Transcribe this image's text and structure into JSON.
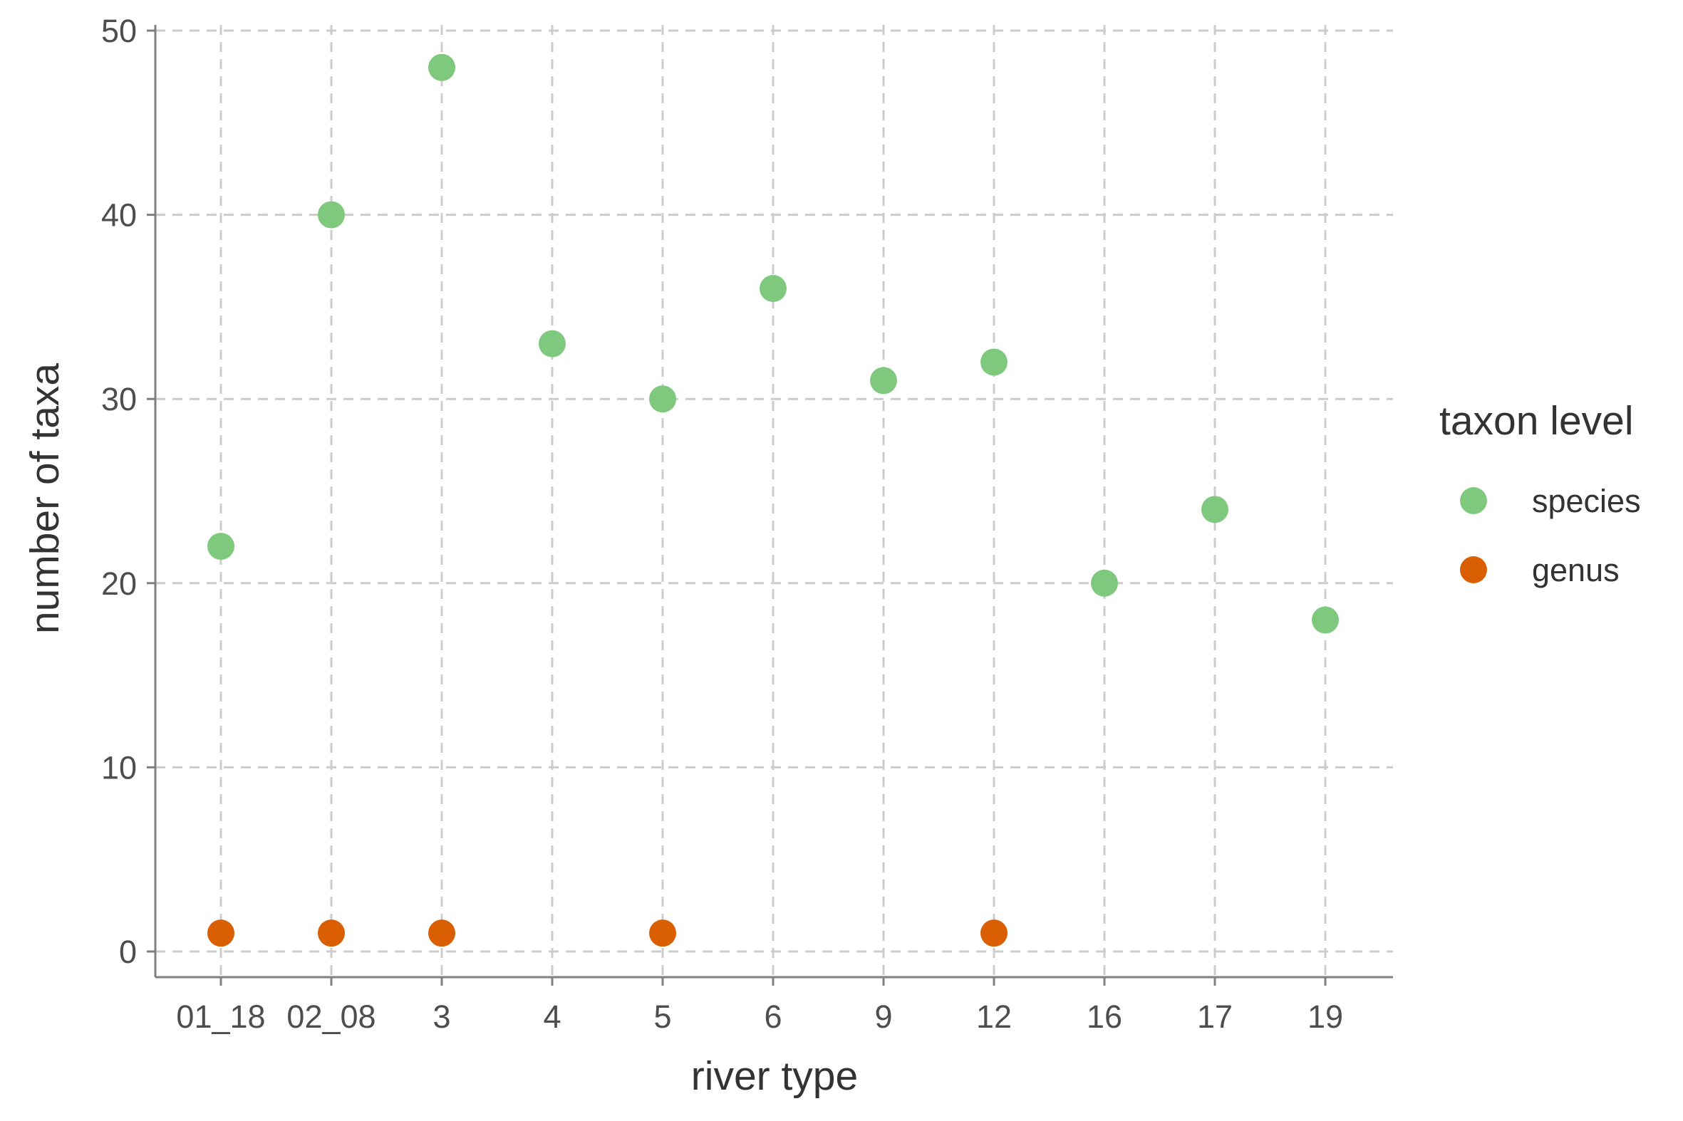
{
  "chart_data": {
    "type": "scatter",
    "categories": [
      "01_18",
      "02_08",
      "3",
      "4",
      "5",
      "6",
      "9",
      "12",
      "16",
      "17",
      "19"
    ],
    "series": [
      {
        "name": "species",
        "color": "#7fc97f",
        "x": [
          "01_18",
          "02_08",
          "3",
          "4",
          "5",
          "6",
          "9",
          "12",
          "16",
          "17",
          "19"
        ],
        "values": [
          22,
          40,
          48,
          33,
          30,
          36,
          31,
          32,
          20,
          24,
          18
        ]
      },
      {
        "name": "genus",
        "color": "#d95f02",
        "x": [
          "01_18",
          "02_08",
          "3",
          "5",
          "12"
        ],
        "values": [
          1,
          1,
          1,
          1,
          1
        ]
      }
    ],
    "xlabel": "river type",
    "ylabel": "number of taxa",
    "legend_title": "taxon level",
    "legend_position": "right",
    "y_ticks": [
      "0",
      "10",
      "20",
      "30",
      "40",
      "50"
    ],
    "ylim": [
      0,
      50
    ],
    "grid": true,
    "grid_style": "dashed"
  }
}
